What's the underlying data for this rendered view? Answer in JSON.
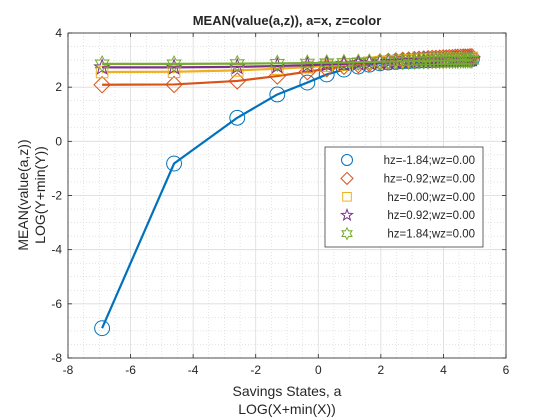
{
  "chart_data": {
    "type": "line",
    "title": "MEAN(value(a,z)), a=x, z=color",
    "xlabel": [
      "Savings States, a",
      "LOG(X+min(X))"
    ],
    "ylabel": [
      "MEAN(value(a,z))",
      "LOG(Y+min(Y))"
    ],
    "xlim": [
      -8,
      6
    ],
    "ylim": [
      -8,
      4
    ],
    "xticks": [
      -8,
      -6,
      -4,
      -2,
      0,
      2,
      4,
      6
    ],
    "yticks": [
      -8,
      -6,
      -4,
      -2,
      0,
      2,
      4
    ],
    "xtick_labels": [
      "-8",
      "-6",
      "-4",
      "-2",
      "0",
      "2",
      "4",
      "6"
    ],
    "ytick_labels": [
      "-8",
      "-6",
      "-4",
      "-2",
      "0",
      "2",
      "4"
    ],
    "grid": true,
    "minor_grid": true,
    "legend_position": "right-middle",
    "x": [
      -6.91,
      -4.61,
      -2.59,
      -1.31,
      -0.35,
      0.27,
      0.82,
      1.28,
      1.63,
      1.97,
      2.24,
      2.48,
      2.7,
      2.89,
      3.07,
      3.22,
      3.37,
      3.51,
      3.64,
      3.76,
      3.88,
      3.99,
      4.09,
      4.19,
      4.29,
      4.38,
      4.46,
      4.55,
      4.63,
      4.7,
      4.78,
      4.85,
      4.91
    ],
    "series": [
      {
        "name": "hz=-1.84;wz=0.00",
        "marker": "circle",
        "color": "#0072BD",
        "values": [
          -6.9,
          -0.82,
          0.87,
          1.73,
          2.17,
          2.47,
          2.65,
          2.76,
          2.83,
          2.88,
          2.91,
          2.93,
          2.95,
          2.96,
          2.97,
          2.98,
          2.99,
          2.99,
          3.0,
          3.0,
          3.01,
          3.01,
          3.02,
          3.02,
          3.02,
          3.03,
          3.03,
          3.03,
          3.03,
          3.04,
          3.04,
          3.04,
          3.04
        ]
      },
      {
        "name": "hz=-0.92;wz=0.00",
        "marker": "diamond",
        "color": "#D95319",
        "values": [
          2.09,
          2.1,
          2.23,
          2.41,
          2.57,
          2.68,
          2.77,
          2.83,
          2.88,
          2.92,
          2.95,
          2.97,
          2.99,
          3.0,
          3.02,
          3.03,
          3.04,
          3.05,
          3.06,
          3.06,
          3.07,
          3.08,
          3.08,
          3.09,
          3.09,
          3.1,
          3.1,
          3.1,
          3.11,
          3.11,
          3.11,
          3.12,
          3.12
        ]
      },
      {
        "name": "hz=0.00;wz=0.00",
        "marker": "square",
        "color": "#EDB120",
        "values": [
          2.56,
          2.57,
          2.62,
          2.68,
          2.74,
          2.79,
          2.83,
          2.87,
          2.9,
          2.92,
          2.94,
          2.96,
          2.97,
          2.99,
          3.0,
          3.01,
          3.02,
          3.02,
          3.03,
          3.04,
          3.04,
          3.05,
          3.05,
          3.06,
          3.06,
          3.06,
          3.07,
          3.07,
          3.07,
          3.08,
          3.08,
          3.08,
          3.08
        ]
      },
      {
        "name": "hz=0.92;wz=0.00",
        "marker": "star",
        "color": "#7E2F8E",
        "values": [
          2.73,
          2.73,
          2.75,
          2.78,
          2.81,
          2.84,
          2.86,
          2.88,
          2.9,
          2.92,
          2.93,
          2.94,
          2.95,
          2.96,
          2.97,
          2.98,
          2.98,
          2.99,
          2.99,
          3.0,
          3.0,
          3.01,
          3.01,
          3.01,
          3.02,
          3.02,
          3.02,
          3.02,
          3.03,
          3.03,
          3.03,
          3.03,
          3.03
        ]
      },
      {
        "name": "hz=1.84;wz=0.00",
        "marker": "hexagram",
        "color": "#77AC30",
        "values": [
          2.86,
          2.86,
          2.87,
          2.88,
          2.89,
          2.9,
          2.91,
          2.92,
          2.93,
          2.94,
          2.94,
          2.95,
          2.95,
          2.96,
          2.96,
          2.97,
          2.97,
          2.97,
          2.98,
          2.98,
          2.98,
          2.98,
          2.99,
          2.99,
          2.99,
          2.99,
          2.99,
          3.0,
          3.0,
          3.0,
          3.0,
          3.0,
          3.0
        ]
      }
    ]
  }
}
